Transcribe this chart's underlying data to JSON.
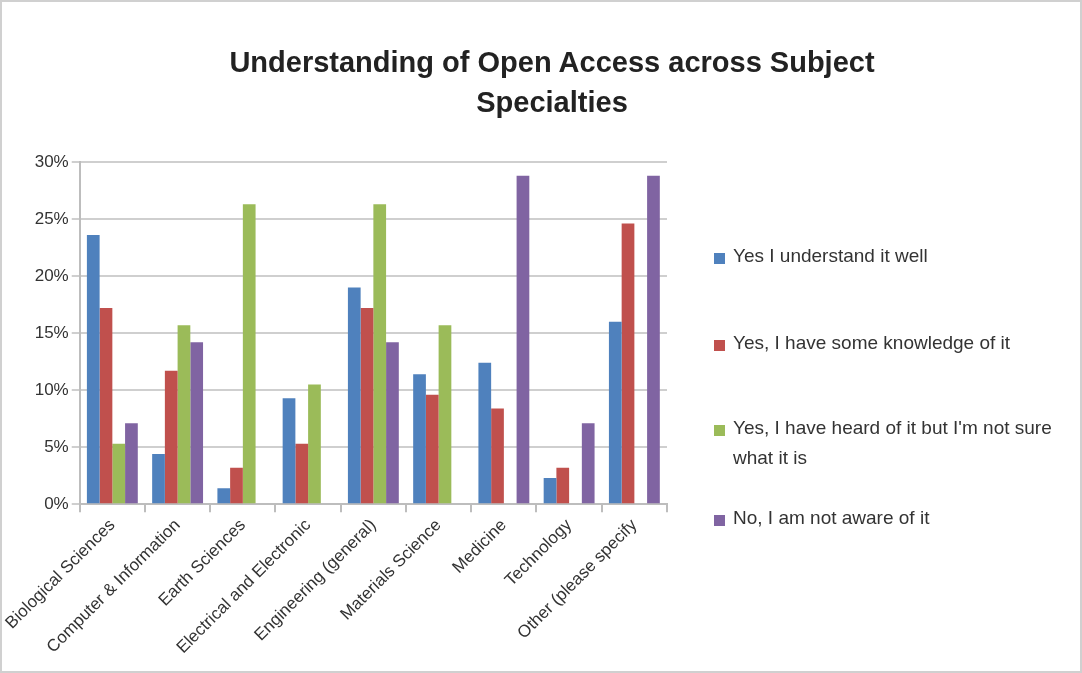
{
  "chart_data": {
    "type": "bar",
    "title": "Understanding of Open Access across Subject Specialties",
    "categories": [
      "Biological Sciences",
      "Computer & Information",
      "Earth Sciences",
      "Electrical and Electronic",
      "Engineering (general)",
      "Materials Science",
      "Medicine",
      "Technology",
      "Other (please specify"
    ],
    "series": [
      {
        "name": "Yes I understand it well",
        "color": "#4f81bd",
        "values": [
          23.6,
          4.4,
          1.4,
          9.3,
          19.0,
          11.4,
          12.4,
          2.3,
          16.0
        ]
      },
      {
        "name": "Yes, I have some knowledge of it",
        "color": "#c0504d",
        "values": [
          17.2,
          11.7,
          3.2,
          5.3,
          17.2,
          9.6,
          8.4,
          3.2,
          24.6
        ]
      },
      {
        "name": "Yes, I have heard of it but  I'm not sure what it is",
        "color": "#9bbb59",
        "values": [
          5.3,
          15.7,
          26.3,
          10.5,
          26.3,
          15.7,
          null,
          null,
          null
        ]
      },
      {
        "name": "No, I am not aware of it",
        "color": "#8064a2",
        "values": [
          7.1,
          14.2,
          null,
          null,
          14.2,
          null,
          28.8,
          7.1,
          28.8
        ]
      }
    ],
    "ylim": [
      0,
      30
    ],
    "yticks": [
      {
        "value": 0,
        "label": "0%"
      },
      {
        "value": 5,
        "label": "5%"
      },
      {
        "value": 10,
        "label": "10%"
      },
      {
        "value": 15,
        "label": "15%"
      },
      {
        "value": 20,
        "label": "20%"
      },
      {
        "value": 25,
        "label": "25%"
      },
      {
        "value": 30,
        "label": "30%"
      }
    ],
    "grid": "y",
    "legend": "right"
  }
}
